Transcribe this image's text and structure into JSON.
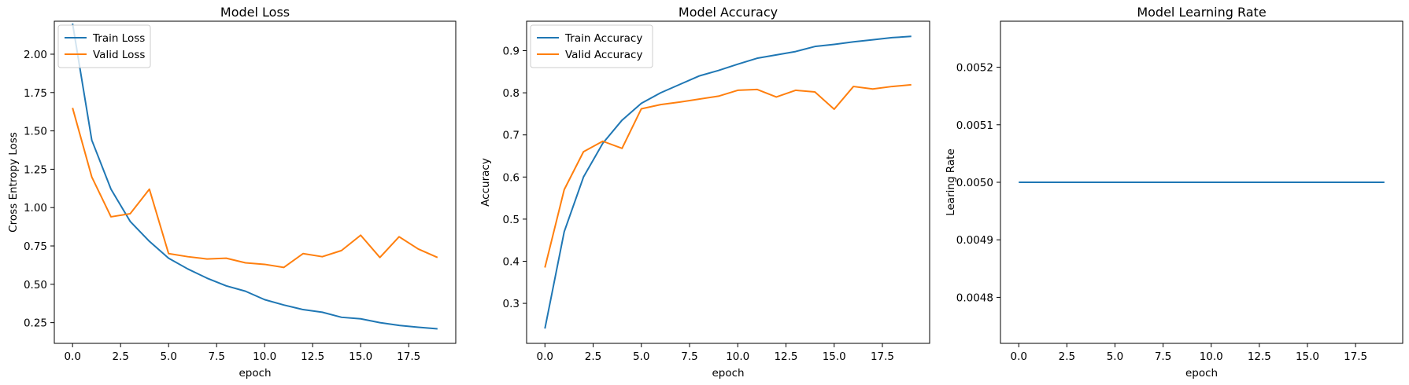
{
  "chart_data": [
    {
      "type": "line",
      "title": "Model Loss",
      "xlabel": "epoch",
      "ylabel": "Cross Entropy Loss",
      "xlim": [
        -0.95,
        19.95
      ],
      "ylim": [
        0.115,
        2.215
      ],
      "xticks": [
        "0.0",
        "2.5",
        "5.0",
        "7.5",
        "10.0",
        "12.5",
        "15.0",
        "17.5"
      ],
      "yticks": [
        "0.25",
        "0.50",
        "0.75",
        "1.00",
        "1.25",
        "1.50",
        "1.75",
        "2.00"
      ],
      "legend": "upper-left",
      "grid": false,
      "x": [
        0,
        1,
        2,
        3,
        4,
        5,
        6,
        7,
        8,
        9,
        10,
        11,
        12,
        13,
        14,
        15,
        16,
        17,
        18,
        19
      ],
      "series": [
        {
          "name": "Train Loss",
          "color": "#1f77b4",
          "values": [
            2.2,
            1.44,
            1.12,
            0.91,
            0.78,
            0.67,
            0.6,
            0.54,
            0.49,
            0.455,
            0.4,
            0.365,
            0.335,
            0.318,
            0.285,
            0.275,
            0.25,
            0.232,
            0.22,
            0.21
          ]
        },
        {
          "name": "Valid Loss",
          "color": "#ff7f0e",
          "values": [
            1.65,
            1.2,
            0.94,
            0.96,
            1.12,
            0.7,
            0.68,
            0.665,
            0.67,
            0.64,
            0.63,
            0.61,
            0.7,
            0.68,
            0.72,
            0.82,
            0.675,
            0.81,
            0.73,
            0.675
          ]
        }
      ]
    },
    {
      "type": "line",
      "title": "Model Accuracy",
      "xlabel": "epoch",
      "ylabel": "Accuracy",
      "xlim": [
        -0.95,
        19.95
      ],
      "ylim": [
        0.205,
        0.97
      ],
      "xticks": [
        "0.0",
        "2.5",
        "5.0",
        "7.5",
        "10.0",
        "12.5",
        "15.0",
        "17.5"
      ],
      "yticks": [
        "0.3",
        "0.4",
        "0.5",
        "0.6",
        "0.7",
        "0.8",
        "0.9"
      ],
      "legend": "upper-left",
      "grid": false,
      "x": [
        0,
        1,
        2,
        3,
        4,
        5,
        6,
        7,
        8,
        9,
        10,
        11,
        12,
        13,
        14,
        15,
        16,
        17,
        18,
        19
      ],
      "series": [
        {
          "name": "Train Accuracy",
          "color": "#1f77b4",
          "values": [
            0.24,
            0.47,
            0.6,
            0.68,
            0.735,
            0.775,
            0.8,
            0.82,
            0.84,
            0.853,
            0.868,
            0.882,
            0.89,
            0.898,
            0.91,
            0.915,
            0.921,
            0.926,
            0.931,
            0.934
          ]
        },
        {
          "name": "Valid Accuracy",
          "color": "#ff7f0e",
          "values": [
            0.385,
            0.57,
            0.66,
            0.685,
            0.668,
            0.762,
            0.772,
            0.778,
            0.785,
            0.792,
            0.806,
            0.808,
            0.79,
            0.806,
            0.802,
            0.761,
            0.815,
            0.809,
            0.815,
            0.819
          ]
        }
      ]
    },
    {
      "type": "line",
      "title": "Model Learning Rate",
      "xlabel": "epoch",
      "ylabel": "Learing Rate",
      "xlim": [
        -0.95,
        19.95
      ],
      "ylim": [
        0.00472,
        0.00528
      ],
      "xticks": [
        "0.0",
        "2.5",
        "5.0",
        "7.5",
        "10.0",
        "12.5",
        "15.0",
        "17.5"
      ],
      "yticks": [
        "0.0048",
        "0.0049",
        "0.0050",
        "0.0051",
        "0.0052"
      ],
      "legend": "none",
      "grid": false,
      "x": [
        0,
        1,
        2,
        3,
        4,
        5,
        6,
        7,
        8,
        9,
        10,
        11,
        12,
        13,
        14,
        15,
        16,
        17,
        18,
        19
      ],
      "series": [
        {
          "color": "#1f77b4",
          "values": [
            0.005,
            0.005,
            0.005,
            0.005,
            0.005,
            0.005,
            0.005,
            0.005,
            0.005,
            0.005,
            0.005,
            0.005,
            0.005,
            0.005,
            0.005,
            0.005,
            0.005,
            0.005,
            0.005,
            0.005
          ]
        }
      ]
    }
  ]
}
